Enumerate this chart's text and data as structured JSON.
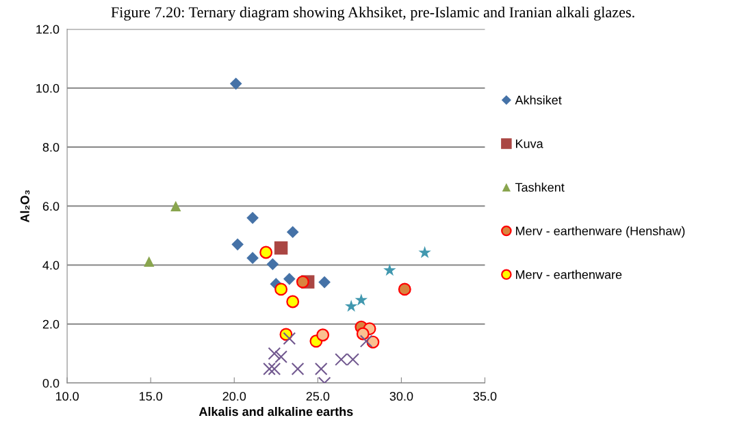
{
  "chart_data": {
    "type": "scatter",
    "title": "Figure 7.20: Ternary diagram showing Akhsiket, pre-Islamic and Iranian alkali glazes.",
    "xlabel": "Alkalis and alkaline earths",
    "ylabel": "Al₂O₃",
    "xlim": [
      10,
      35
    ],
    "xticks": [
      {
        "value": 10,
        "label": "10.0"
      },
      {
        "value": 15,
        "label": "15.0"
      },
      {
        "value": 20,
        "label": "20.0"
      },
      {
        "value": 25,
        "label": "25.0"
      },
      {
        "value": 30,
        "label": "30.0"
      },
      {
        "value": 35,
        "label": "35.0"
      }
    ],
    "ylim": [
      0,
      12
    ],
    "yticks": [
      {
        "value": 0,
        "label": "0.0"
      },
      {
        "value": 2,
        "label": "2.0"
      },
      {
        "value": 4,
        "label": "4.0"
      },
      {
        "value": 6,
        "label": "6.0"
      },
      {
        "value": 8,
        "label": "8.0"
      },
      {
        "value": 10,
        "label": "10.0"
      },
      {
        "value": 12,
        "label": "12.0"
      }
    ],
    "grid": "y",
    "legend": "right",
    "series": [
      {
        "name": "Akhsiket",
        "color": "#4572a7",
        "marker": "diamond",
        "x": [
          20.1,
          21.1,
          23.5,
          20.2,
          21.1,
          22.3,
          23.3,
          22.5,
          25.4
        ],
        "values": [
          10.15,
          5.6,
          5.12,
          4.7,
          4.24,
          4.03,
          3.53,
          3.36,
          3.42
        ]
      },
      {
        "name": "Kuva",
        "color": "#aa4643",
        "marker": "square",
        "x": [
          22.8,
          24.4
        ],
        "values": [
          4.58,
          3.43
        ]
      },
      {
        "name": "Tashkent",
        "color": "#89a54e",
        "marker": "triangle",
        "x": [
          14.9,
          16.5
        ],
        "values": [
          4.12,
          6.0
        ]
      },
      {
        "name": "Merv - earthenware (Henshaw)",
        "color": "#d9843f",
        "marker": "circle",
        "x": [
          24.1,
          30.2,
          27.6
        ],
        "values": [
          3.43,
          3.18,
          1.9
        ]
      },
      {
        "name": "Merv - earthenware",
        "color": "#ffff00",
        "marker": "circle",
        "x": [
          21.9,
          22.8,
          23.5,
          23.1,
          24.9
        ],
        "values": [
          4.43,
          3.18,
          2.76,
          1.65,
          1.42
        ]
      },
      {
        "color": "#fac090",
        "marker": "circle",
        "x": [
          25.3,
          28.1,
          27.7,
          28.3
        ],
        "values": [
          1.63,
          1.84,
          1.67,
          1.39
        ]
      },
      {
        "color": "#4198af",
        "marker": "star",
        "x": [
          27.0,
          27.6,
          29.3,
          31.4
        ],
        "values": [
          2.6,
          2.81,
          3.82,
          4.42
        ]
      },
      {
        "color": "#71588f",
        "marker": "cross",
        "x": [
          23.3,
          22.4,
          22.8,
          22.1,
          22.4,
          23.8,
          25.2,
          25.4,
          26.4,
          27.1,
          27.9
        ],
        "values": [
          1.51,
          1.0,
          0.89,
          0.48,
          0.48,
          0.48,
          0.48,
          0.0,
          0.8,
          0.8,
          1.42
        ]
      }
    ]
  }
}
